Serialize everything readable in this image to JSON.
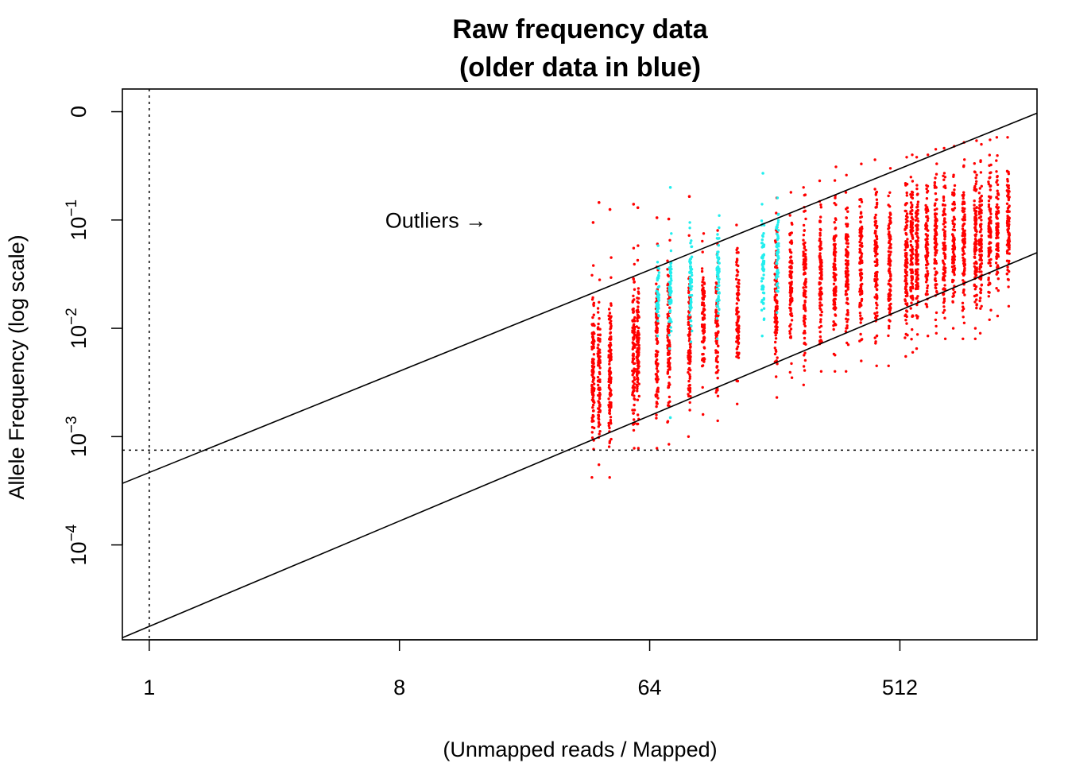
{
  "chart_data": {
    "type": "scatter",
    "title": "Raw frequency data",
    "subtitle": "(older data in blue)",
    "xlabel": "(Unmapped reads / Mapped)",
    "ylabel": "Allele Frequency (log scale)",
    "x_scale": "log2",
    "y_scale": "log10",
    "xlim": [
      0.8,
      1600
    ],
    "ylim": [
      1.33e-05,
      1.62
    ],
    "x_ticks": [
      {
        "value": 1,
        "label": "1"
      },
      {
        "value": 8,
        "label": "8"
      },
      {
        "value": 64,
        "label": "64"
      },
      {
        "value": 512,
        "label": "512"
      }
    ],
    "y_ticks": [
      {
        "value": 1,
        "base": "0",
        "exp": ""
      },
      {
        "value": 0.1,
        "base": "10",
        "exp": "−1"
      },
      {
        "value": 0.01,
        "base": "10",
        "exp": "−2"
      },
      {
        "value": 0.001,
        "base": "10",
        "exp": "−3"
      },
      {
        "value": 0.0001,
        "base": "10",
        "exp": "−4"
      }
    ],
    "reference_lines": [
      {
        "style": "dotted",
        "orientation": "vertical",
        "x": 1
      },
      {
        "style": "dotted",
        "orientation": "horizontal",
        "y": 0.00075
      },
      {
        "style": "solid",
        "points": [
          [
            0.8,
            0.00037
          ],
          [
            1600,
            0.97
          ]
        ]
      },
      {
        "style": "solid",
        "points": [
          [
            0.8,
            1.39e-05
          ],
          [
            1600,
            0.05
          ]
        ]
      }
    ],
    "annotation": {
      "text": "Outliers →",
      "x": 16.5,
      "y": 0.085
    },
    "series": [
      {
        "color": "#ff0000",
        "columns": [
          {
            "x": 40,
            "ymin": 0.00042,
            "ymax": 0.038,
            "outliers": [
              0.095
            ]
          },
          {
            "x": 42,
            "ymin": 0.00055,
            "ymax": 0.028,
            "outliers": [
              0.145
            ]
          },
          {
            "x": 46,
            "ymin": 0.00042,
            "ymax": 0.045,
            "outliers": [
              0.125
            ]
          },
          {
            "x": 56,
            "ymin": 0.00078,
            "ymax": 0.055,
            "outliers": [
              0.14
            ]
          },
          {
            "x": 58,
            "ymin": 0.00078,
            "ymax": 0.058,
            "outliers": [
              0.13
            ]
          },
          {
            "x": 68,
            "ymin": 0.00078,
            "ymax": 0.06,
            "outliers": [
              0.105
            ]
          },
          {
            "x": 75,
            "ymin": 0.00085,
            "ymax": 0.065,
            "outliers": [
              0.102
            ]
          },
          {
            "x": 89,
            "ymin": 0.001,
            "ymax": 0.072,
            "outliers": [
              0.165
            ]
          },
          {
            "x": 100,
            "ymin": 0.0016,
            "ymax": 0.075,
            "outliers": []
          },
          {
            "x": 112,
            "ymin": 0.0014,
            "ymax": 0.08,
            "outliers": []
          },
          {
            "x": 133,
            "ymin": 0.002,
            "ymax": 0.09,
            "outliers": []
          },
          {
            "x": 183,
            "ymin": 0.0023,
            "ymax": 0.16,
            "outliers": []
          },
          {
            "x": 207,
            "ymin": 0.0035,
            "ymax": 0.18,
            "outliers": []
          },
          {
            "x": 232,
            "ymin": 0.003,
            "ymax": 0.2,
            "outliers": []
          },
          {
            "x": 265,
            "ymin": 0.004,
            "ymax": 0.23,
            "outliers": []
          },
          {
            "x": 298,
            "ymin": 0.004,
            "ymax": 0.31,
            "outliers": []
          },
          {
            "x": 330,
            "ymin": 0.004,
            "ymax": 0.26,
            "outliers": []
          },
          {
            "x": 370,
            "ymin": 0.005,
            "ymax": 0.33,
            "outliers": []
          },
          {
            "x": 420,
            "ymin": 0.0045,
            "ymax": 0.36,
            "outliers": []
          },
          {
            "x": 470,
            "ymin": 0.0045,
            "ymax": 0.3,
            "outliers": []
          },
          {
            "x": 540,
            "ymin": 0.0055,
            "ymax": 0.38,
            "outliers": []
          },
          {
            "x": 565,
            "ymin": 0.006,
            "ymax": 0.4,
            "outliers": []
          },
          {
            "x": 590,
            "ymin": 0.0065,
            "ymax": 0.38,
            "outliers": []
          },
          {
            "x": 640,
            "ymin": 0.0085,
            "ymax": 0.4,
            "outliers": []
          },
          {
            "x": 690,
            "ymin": 0.009,
            "ymax": 0.45,
            "outliers": []
          },
          {
            "x": 740,
            "ymin": 0.008,
            "ymax": 0.46,
            "outliers": []
          },
          {
            "x": 800,
            "ymin": 0.01,
            "ymax": 0.48,
            "outliers": []
          },
          {
            "x": 870,
            "ymin": 0.008,
            "ymax": 0.52,
            "outliers": []
          },
          {
            "x": 960,
            "ymin": 0.008,
            "ymax": 0.54,
            "outliers": []
          },
          {
            "x": 1000,
            "ymin": 0.009,
            "ymax": 0.5,
            "outliers": []
          },
          {
            "x": 1080,
            "ymin": 0.012,
            "ymax": 0.55,
            "outliers": []
          },
          {
            "x": 1150,
            "ymin": 0.013,
            "ymax": 0.58,
            "outliers": []
          },
          {
            "x": 1260,
            "ymin": 0.016,
            "ymax": 0.58,
            "outliers": []
          }
        ]
      },
      {
        "color": "#22eeee",
        "columns": [
          {
            "x": 68.5,
            "ymin": 0.0085,
            "ymax": 0.058,
            "outliers": []
          },
          {
            "x": 76,
            "ymin": 0.0065,
            "ymax": 0.075,
            "outliers": [
              0.0015,
              0.2
            ]
          },
          {
            "x": 90,
            "ymin": 0.0075,
            "ymax": 0.095,
            "outliers": []
          },
          {
            "x": 113,
            "ymin": 0.008,
            "ymax": 0.11,
            "outliers": []
          },
          {
            "x": 164,
            "ymin": 0.0085,
            "ymax": 0.14,
            "outliers": [
              0.27
            ]
          },
          {
            "x": 185,
            "ymin": 0.014,
            "ymax": 0.16,
            "outliers": []
          }
        ]
      }
    ]
  }
}
